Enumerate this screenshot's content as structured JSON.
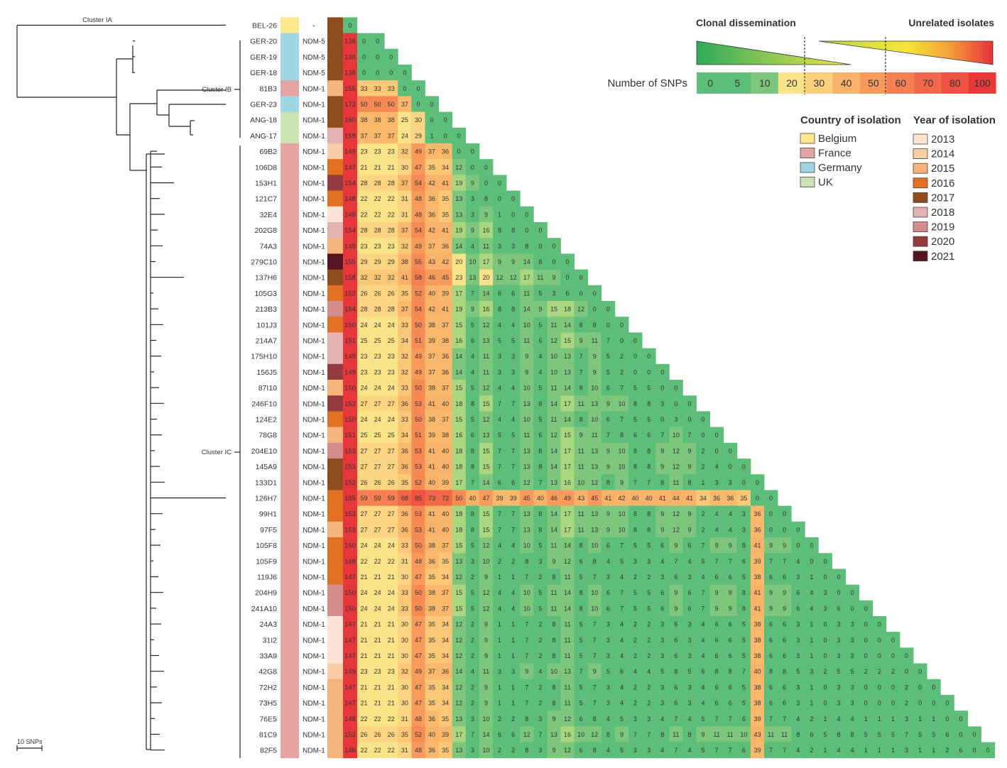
{
  "clusters": {
    "ia": "Cluster IA",
    "ib": "Cluster IB",
    "ic": "Cluster IC"
  },
  "scale_bar": "10 SNPs",
  "ndm_none": "-",
  "isolates": [
    {
      "id": "BEL-26",
      "country": "Belgium",
      "ndm": "-",
      "year": "2017",
      "ref": 0
    },
    {
      "id": "GER-20",
      "country": "Germany",
      "ndm": "NDM-5",
      "year": "2017",
      "ref": 138
    },
    {
      "id": "GER-19",
      "country": "Germany",
      "ndm": "NDM-5",
      "year": "2017",
      "ref": 138
    },
    {
      "id": "GER-18",
      "country": "Germany",
      "ndm": "NDM-5",
      "year": "2017",
      "ref": 138
    },
    {
      "id": "81B3",
      "country": "France",
      "ndm": "NDM-1",
      "year": "2015",
      "ref": 155
    },
    {
      "id": "GER-23",
      "country": "Germany",
      "ndm": "NDM-1",
      "year": "2017",
      "ref": 172
    },
    {
      "id": "ANG-18",
      "country": "UK",
      "ndm": "NDM-1",
      "year": "2017",
      "ref": 160
    },
    {
      "id": "ANG-17",
      "country": "UK",
      "ndm": "NDM-1",
      "year": "2018",
      "ref": 159
    },
    {
      "id": "69B2",
      "country": "France",
      "ndm": "NDM-1",
      "year": "2014",
      "ref": 149
    },
    {
      "id": "106D8",
      "country": "France",
      "ndm": "NDM-1",
      "year": "2016",
      "ref": 147
    },
    {
      "id": "153H1",
      "country": "France",
      "ndm": "NDM-1",
      "year": "2020",
      "ref": 154
    },
    {
      "id": "121C7",
      "country": "France",
      "ndm": "NDM-1",
      "year": "2016",
      "ref": 148
    },
    {
      "id": "32E4",
      "country": "France",
      "ndm": "NDM-1",
      "year": "2013",
      "ref": 148
    },
    {
      "id": "202G8",
      "country": "France",
      "ndm": "NDM-1",
      "year": "2018",
      "ref": 154
    },
    {
      "id": "74A3",
      "country": "France",
      "ndm": "NDM-1",
      "year": "2015",
      "ref": 149
    },
    {
      "id": "279C10",
      "country": "France",
      "ndm": "NDM-1",
      "year": "2021",
      "ref": 155
    },
    {
      "id": "137H6",
      "country": "France",
      "ndm": "NDM-1",
      "year": "2017",
      "ref": 158
    },
    {
      "id": "105G3",
      "country": "France",
      "ndm": "NDM-1",
      "year": "2016",
      "ref": 152
    },
    {
      "id": "213B3",
      "country": "France",
      "ndm": "NDM-1",
      "year": "2019",
      "ref": 154
    },
    {
      "id": "101J3",
      "country": "France",
      "ndm": "NDM-1",
      "year": "2016",
      "ref": 150
    },
    {
      "id": "214A7",
      "country": "France",
      "ndm": "NDM-1",
      "year": "2018",
      "ref": 151
    },
    {
      "id": "175H10",
      "country": "France",
      "ndm": "NDM-1",
      "year": "2018",
      "ref": 149
    },
    {
      "id": "156J5",
      "country": "France",
      "ndm": "NDM-1",
      "year": "2020",
      "ref": 149
    },
    {
      "id": "87I10",
      "country": "France",
      "ndm": "NDM-1",
      "year": "2015",
      "ref": 150
    },
    {
      "id": "246F10",
      "country": "France",
      "ndm": "NDM-1",
      "year": "2020",
      "ref": 153
    },
    {
      "id": "124E2",
      "country": "France",
      "ndm": "NDM-1",
      "year": "2016",
      "ref": 150
    },
    {
      "id": "78G8",
      "country": "France",
      "ndm": "NDM-1",
      "year": "2015",
      "ref": 151
    },
    {
      "id": "204E10",
      "country": "France",
      "ndm": "NDM-1",
      "year": "2019",
      "ref": 153
    },
    {
      "id": "145A9",
      "country": "France",
      "ndm": "NDM-1",
      "year": "2017",
      "ref": 153
    },
    {
      "id": "133D1",
      "country": "France",
      "ndm": "NDM-1",
      "year": "2017",
      "ref": 152
    },
    {
      "id": "126H7",
      "country": "France",
      "ndm": "NDM-1",
      "year": "2016",
      "ref": 185
    },
    {
      "id": "99H1",
      "country": "France",
      "ndm": "NDM-1",
      "year": "2016",
      "ref": 153
    },
    {
      "id": "97F5",
      "country": "France",
      "ndm": "NDM-1",
      "year": "2015",
      "ref": 153
    },
    {
      "id": "105F8",
      "country": "France",
      "ndm": "NDM-1",
      "year": "2016",
      "ref": 150
    },
    {
      "id": "105F9",
      "country": "France",
      "ndm": "NDM-1",
      "year": "2016",
      "ref": 148
    },
    {
      "id": "119J6",
      "country": "France",
      "ndm": "NDM-1",
      "year": "2016",
      "ref": 147
    },
    {
      "id": "204H9",
      "country": "France",
      "ndm": "NDM-1",
      "year": "2019",
      "ref": 150
    },
    {
      "id": "241A10",
      "country": "France",
      "ndm": "NDM-1",
      "year": "2019",
      "ref": 150
    },
    {
      "id": "24A3",
      "country": "France",
      "ndm": "NDM-1",
      "year": "2013",
      "ref": 147
    },
    {
      "id": "31I2",
      "country": "France",
      "ndm": "NDM-1",
      "year": "2013",
      "ref": 147
    },
    {
      "id": "33A9",
      "country": "France",
      "ndm": "NDM-1",
      "year": "2013",
      "ref": 147
    },
    {
      "id": "42G8",
      "country": "France",
      "ndm": "NDM-1",
      "year": "2014",
      "ref": 149
    },
    {
      "id": "72H2",
      "country": "France",
      "ndm": "NDM-1",
      "year": "2015",
      "ref": 147
    },
    {
      "id": "73H5",
      "country": "France",
      "ndm": "NDM-1",
      "year": "2015",
      "ref": 147
    },
    {
      "id": "76E5",
      "country": "France",
      "ndm": "NDM-1",
      "year": "2015",
      "ref": 148
    },
    {
      "id": "81C9",
      "country": "France",
      "ndm": "NDM-1",
      "year": "2015",
      "ref": 152
    },
    {
      "id": "82F5",
      "country": "France",
      "ndm": "NDM-1",
      "year": "2015",
      "ref": 148
    }
  ],
  "matrix_rows": [
    [],
    [
      0
    ],
    [
      0,
      0
    ],
    [
      0,
      0,
      0
    ],
    [
      33,
      33,
      33,
      0
    ],
    [
      50,
      50,
      50,
      37,
      0
    ],
    [
      38,
      38,
      38,
      25,
      30,
      0
    ],
    [
      37,
      37,
      37,
      24,
      29,
      1,
      0
    ],
    [
      23,
      23,
      23,
      32,
      49,
      37,
      36,
      0
    ],
    [
      21,
      21,
      21,
      30,
      47,
      35,
      34,
      12,
      0
    ],
    [
      28,
      28,
      28,
      37,
      54,
      42,
      41,
      19,
      9,
      0
    ],
    [
      22,
      22,
      22,
      31,
      48,
      36,
      35,
      13,
      3,
      8,
      0
    ],
    [
      22,
      22,
      22,
      31,
      48,
      36,
      35,
      13,
      3,
      9,
      1,
      0
    ],
    [
      28,
      28,
      28,
      37,
      54,
      42,
      41,
      19,
      9,
      16,
      8,
      8,
      0
    ],
    [
      23,
      23,
      23,
      32,
      49,
      37,
      36,
      14,
      4,
      11,
      3,
      3,
      8,
      0
    ],
    [
      29,
      29,
      29,
      38,
      55,
      43,
      42,
      20,
      10,
      17,
      9,
      9,
      14,
      8,
      0
    ],
    [
      32,
      32,
      32,
      41,
      58,
      46,
      45,
      23,
      13,
      20,
      12,
      12,
      17,
      11,
      9,
      0
    ],
    [
      26,
      26,
      26,
      35,
      52,
      40,
      39,
      17,
      7,
      14,
      6,
      6,
      11,
      5,
      3,
      6,
      0
    ],
    [
      28,
      28,
      28,
      37,
      54,
      42,
      41,
      19,
      9,
      16,
      8,
      8,
      14,
      9,
      15,
      18,
      12,
      0
    ],
    [
      24,
      24,
      24,
      33,
      50,
      38,
      37,
      15,
      5,
      12,
      4,
      4,
      10,
      5,
      11,
      14,
      8,
      8,
      0
    ],
    [
      25,
      25,
      25,
      34,
      51,
      39,
      38,
      16,
      6,
      13,
      5,
      5,
      11,
      6,
      12,
      15,
      9,
      11,
      7,
      0
    ],
    [
      23,
      23,
      23,
      32,
      49,
      37,
      36,
      14,
      4,
      11,
      3,
      3,
      9,
      4,
      10,
      13,
      7,
      9,
      5,
      2,
      0
    ],
    [
      23,
      23,
      23,
      32,
      49,
      37,
      36,
      14,
      4,
      11,
      3,
      3,
      9,
      4,
      10,
      13,
      7,
      9,
      5,
      2,
      0,
      0
    ],
    [
      24,
      24,
      24,
      33,
      50,
      38,
      37,
      15,
      5,
      12,
      4,
      4,
      10,
      5,
      11,
      14,
      8,
      10,
      6,
      7,
      5,
      5,
      0
    ],
    [
      27,
      27,
      27,
      36,
      53,
      41,
      40,
      18,
      8,
      15,
      7,
      7,
      13,
      8,
      14,
      17,
      11,
      13,
      9,
      10,
      8,
      8,
      3,
      0
    ],
    [
      24,
      24,
      24,
      33,
      50,
      38,
      37,
      15,
      5,
      12,
      4,
      4,
      10,
      5,
      11,
      14,
      8,
      10,
      6,
      7,
      5,
      5,
      0,
      3,
      0
    ],
    [
      25,
      25,
      25,
      34,
      51,
      39,
      38,
      16,
      6,
      13,
      5,
      5,
      11,
      6,
      12,
      15,
      9,
      11,
      7,
      8,
      6,
      6,
      7,
      10,
      7,
      0
    ],
    [
      27,
      27,
      27,
      36,
      53,
      41,
      40,
      18,
      8,
      15,
      7,
      7,
      13,
      8,
      14,
      17,
      11,
      13,
      9,
      10,
      8,
      8,
      9,
      12,
      9,
      2,
      0
    ],
    [
      27,
      27,
      27,
      36,
      53,
      41,
      40,
      18,
      8,
      15,
      7,
      7,
      13,
      8,
      14,
      17,
      11,
      13,
      9,
      10,
      8,
      8,
      9,
      12,
      9,
      2,
      4,
      0
    ],
    [
      26,
      26,
      26,
      35,
      52,
      40,
      39,
      17,
      7,
      14,
      6,
      6,
      12,
      7,
      13,
      16,
      10,
      12,
      8,
      9,
      7,
      7,
      8,
      11,
      8,
      1,
      3,
      3,
      0
    ],
    [
      59,
      59,
      59,
      68,
      85,
      73,
      72,
      50,
      40,
      47,
      39,
      39,
      45,
      40,
      46,
      49,
      43,
      45,
      41,
      42,
      40,
      40,
      41,
      44,
      41,
      34,
      36,
      36,
      35,
      0
    ],
    [
      27,
      27,
      27,
      36,
      53,
      41,
      40,
      18,
      8,
      15,
      7,
      7,
      13,
      8,
      14,
      17,
      11,
      13,
      9,
      10,
      8,
      8,
      9,
      12,
      9,
      2,
      4,
      4,
      3,
      36,
      0
    ],
    [
      27,
      27,
      27,
      36,
      53,
      41,
      40,
      18,
      8,
      15,
      7,
      7,
      13,
      8,
      14,
      17,
      11,
      13,
      9,
      10,
      8,
      8,
      9,
      12,
      9,
      2,
      4,
      4,
      3,
      36,
      0,
      0
    ],
    [
      24,
      24,
      24,
      33,
      50,
      38,
      37,
      15,
      5,
      12,
      4,
      4,
      10,
      5,
      11,
      14,
      8,
      10,
      6,
      7,
      5,
      5,
      6,
      9,
      6,
      7,
      9,
      9,
      8,
      41,
      9,
      9,
      0
    ],
    [
      22,
      22,
      22,
      31,
      48,
      36,
      35,
      13,
      3,
      10,
      2,
      2,
      8,
      3,
      9,
      12,
      6,
      8,
      4,
      5,
      3,
      3,
      4,
      7,
      4,
      5,
      7,
      7,
      6,
      39,
      7,
      7,
      4,
      0
    ],
    [
      21,
      21,
      21,
      30,
      47,
      35,
      34,
      12,
      2,
      9,
      1,
      1,
      7,
      2,
      8,
      11,
      5,
      7,
      3,
      4,
      2,
      2,
      3,
      6,
      3,
      4,
      6,
      6,
      5,
      38,
      6,
      6,
      3,
      1,
      0
    ],
    [
      24,
      24,
      24,
      33,
      50,
      38,
      37,
      15,
      5,
      12,
      4,
      4,
      10,
      5,
      11,
      14,
      8,
      10,
      6,
      7,
      5,
      5,
      6,
      9,
      6,
      7,
      9,
      9,
      8,
      41,
      9,
      9,
      6,
      4,
      3,
      0
    ],
    [
      24,
      24,
      24,
      33,
      50,
      38,
      37,
      15,
      5,
      12,
      4,
      4,
      10,
      5,
      11,
      14,
      8,
      10,
      6,
      7,
      5,
      5,
      6,
      9,
      6,
      7,
      9,
      9,
      8,
      41,
      9,
      9,
      6,
      4,
      3,
      6,
      0
    ],
    [
      21,
      21,
      21,
      30,
      47,
      35,
      34,
      12,
      2,
      9,
      1,
      1,
      7,
      2,
      8,
      11,
      5,
      7,
      3,
      4,
      2,
      2,
      3,
      6,
      3,
      4,
      6,
      6,
      5,
      38,
      6,
      6,
      3,
      1,
      0,
      3,
      3,
      0
    ],
    [
      21,
      21,
      21,
      30,
      47,
      35,
      34,
      12,
      2,
      9,
      1,
      1,
      7,
      2,
      8,
      11,
      5,
      7,
      3,
      4,
      2,
      2,
      3,
      6,
      3,
      4,
      6,
      6,
      5,
      38,
      6,
      6,
      3,
      1,
      0,
      3,
      3,
      0,
      0
    ],
    [
      21,
      21,
      21,
      30,
      47,
      35,
      34,
      12,
      2,
      9,
      1,
      1,
      7,
      2,
      8,
      11,
      5,
      7,
      3,
      4,
      2,
      2,
      3,
      6,
      3,
      4,
      6,
      6,
      5,
      38,
      6,
      6,
      3,
      1,
      0,
      3,
      3,
      0,
      0,
      0
    ],
    [
      23,
      23,
      23,
      32,
      49,
      37,
      36,
      14,
      4,
      11,
      3,
      3,
      9,
      4,
      10,
      13,
      7,
      9,
      5,
      6,
      4,
      4,
      5,
      8,
      5,
      6,
      8,
      8,
      7,
      40,
      8,
      8,
      5,
      3,
      2,
      5,
      5,
      2,
      2,
      2,
      0
    ],
    [
      21,
      21,
      21,
      30,
      47,
      35,
      34,
      12,
      2,
      9,
      1,
      1,
      7,
      2,
      8,
      11,
      5,
      7,
      3,
      4,
      2,
      2,
      3,
      6,
      3,
      4,
      6,
      6,
      5,
      38,
      6,
      6,
      3,
      1,
      0,
      3,
      3,
      0,
      0,
      0,
      2,
      0
    ],
    [
      21,
      21,
      21,
      30,
      47,
      35,
      34,
      12,
      2,
      9,
      1,
      1,
      7,
      2,
      8,
      11,
      5,
      7,
      3,
      4,
      2,
      2,
      3,
      6,
      3,
      4,
      6,
      6,
      5,
      38,
      6,
      6,
      3,
      1,
      0,
      3,
      3,
      0,
      0,
      0,
      2,
      0,
      0
    ],
    [
      22,
      22,
      22,
      31,
      48,
      36,
      35,
      13,
      3,
      10,
      2,
      2,
      8,
      3,
      9,
      12,
      6,
      8,
      4,
      5,
      3,
      3,
      4,
      7,
      4,
      5,
      7,
      7,
      6,
      39,
      7,
      7,
      4,
      2,
      1,
      4,
      4,
      1,
      1,
      1,
      3,
      1,
      1,
      0
    ],
    [
      26,
      26,
      26,
      35,
      52,
      40,
      39,
      17,
      7,
      14,
      6,
      6,
      12,
      7,
      13,
      16,
      10,
      12,
      8,
      9,
      7,
      7,
      8,
      11,
      8,
      9,
      11,
      11,
      10,
      43,
      11,
      11,
      8,
      6,
      5,
      8,
      8,
      5,
      5,
      5,
      7,
      5,
      5,
      6,
      0
    ],
    [
      22,
      22,
      22,
      31,
      48,
      36,
      35,
      13,
      3,
      10,
      2,
      2,
      8,
      3,
      9,
      12,
      6,
      8,
      4,
      5,
      3,
      3,
      4,
      7,
      4,
      5,
      7,
      7,
      6,
      39,
      7,
      7,
      4,
      2,
      1,
      4,
      4,
      1,
      1,
      1,
      3,
      1,
      1,
      2,
      6,
      0
    ]
  ],
  "legend_snps": {
    "clonal": "Clonal dissemination",
    "unrelated": "Unrelated isolates",
    "number_label": "Number of SNPs",
    "scale": [
      {
        "label": "0",
        "color": "#5dbe7a"
      },
      {
        "label": "5",
        "color": "#5dbe7a"
      },
      {
        "label": "10",
        "color": "#7cc67e"
      },
      {
        "label": "20",
        "color": "#fbe389"
      },
      {
        "label": "30",
        "color": "#fbcf7b"
      },
      {
        "label": "40",
        "color": "#f9b26a"
      },
      {
        "label": "50",
        "color": "#f79a5c"
      },
      {
        "label": "60",
        "color": "#f47f52"
      },
      {
        "label": "70",
        "color": "#f06749"
      },
      {
        "label": "80",
        "color": "#ed5242"
      },
      {
        "label": "100",
        "color": "#e9383a"
      }
    ]
  },
  "legend_country": {
    "title": "Country of isolation",
    "items": [
      {
        "label": "Belgium",
        "color": "#fde78f"
      },
      {
        "label": "France",
        "color": "#e5a4a2"
      },
      {
        "label": "Germany",
        "color": "#9fd6e6"
      },
      {
        "label": "UK",
        "color": "#cde3b4"
      }
    ]
  },
  "legend_year": {
    "title": "Year of isolation",
    "items": [
      {
        "label": "2013",
        "color": "#fde3d6"
      },
      {
        "label": "2014",
        "color": "#fbcda7"
      },
      {
        "label": "2015",
        "color": "#f7b37c"
      },
      {
        "label": "2016",
        "color": "#e26f22"
      },
      {
        "label": "2017",
        "color": "#8f4a1d"
      },
      {
        "label": "2018",
        "color": "#e4b1b3"
      },
      {
        "label": "2019",
        "color": "#d68b8d"
      },
      {
        "label": "2020",
        "color": "#943a41"
      },
      {
        "label": "2021",
        "color": "#57161f"
      }
    ]
  },
  "colors": {
    "ref_column": "#e8373a",
    "ref_zero": "#5dbe7a",
    "tree_line": "#222222",
    "cell_text": "#333333"
  }
}
